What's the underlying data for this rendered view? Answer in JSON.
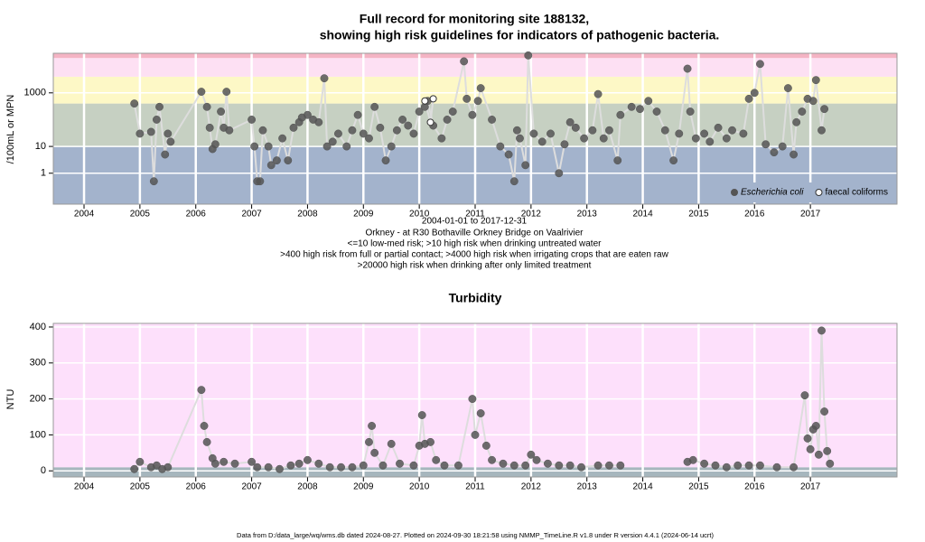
{
  "chart_data": [
    {
      "type": "line",
      "title": "Full record for monitoring site 188132,",
      "subtitle": "showing high risk guidelines for indicators of pathogenic bacteria.",
      "notes": [
        "2004-01-01 to 2017-12-31",
        "Orkney - at R30 Bothaville Orkney Bridge on Vaalrivier",
        "<=10 low-med risk; >10 high risk when drinking untreated water",
        ">400 high risk from full or partial contact; >4000 high risk when irrigating crops that are eaten raw",
        ">20000 high risk when drinking after only limited treatment"
      ],
      "y_label": "/100mL or MPN",
      "log_y": true,
      "grid": true,
      "legend": "bottom-right",
      "xlim": [
        2003.45,
        2018.55
      ],
      "xticks": [
        2004,
        2005,
        2006,
        2007,
        2008,
        2009,
        2010,
        2011,
        2012,
        2013,
        2014,
        2015,
        2016,
        2017
      ],
      "ylim": [
        0.07,
        30000
      ],
      "yticks": [
        1,
        10,
        1000
      ],
      "thresholds": [
        10,
        400,
        4000,
        20000
      ],
      "band_colors": [
        "#a3b3cc",
        "#c6d0c2",
        "#fdf8c6",
        "#fde0f3",
        "#f4b4c4"
      ],
      "series": [
        {
          "name": "Escherichia coli",
          "color": "#555555",
          "marker": "filled",
          "x": [
            2004.9,
            2005.0,
            2005.2,
            2005.25,
            2005.3,
            2005.35,
            2005.45,
            2005.5,
            2005.55,
            2006.1,
            2006.2,
            2006.25,
            2006.3,
            2006.35,
            2006.45,
            2006.5,
            2006.55,
            2006.6,
            2007.0,
            2007.05,
            2007.1,
            2007.15,
            2007.2,
            2007.3,
            2007.35,
            2007.45,
            2007.55,
            2007.65,
            2007.75,
            2007.85,
            2007.9,
            2008.0,
            2008.1,
            2008.2,
            2008.3,
            2008.35,
            2008.45,
            2008.55,
            2008.7,
            2008.8,
            2008.9,
            2009.0,
            2009.1,
            2009.2,
            2009.3,
            2009.4,
            2009.5,
            2009.6,
            2009.7,
            2009.8,
            2009.9,
            2010.0,
            2010.1,
            2010.15,
            2010.25,
            2010.4,
            2010.5,
            2010.6,
            2010.8,
            2010.85,
            2010.95,
            2011.05,
            2011.1,
            2011.3,
            2011.45,
            2011.6,
            2011.7,
            2011.75,
            2011.8,
            2011.9,
            2011.95,
            2012.05,
            2012.2,
            2012.35,
            2012.5,
            2012.6,
            2012.7,
            2012.8,
            2012.95,
            2013.1,
            2013.2,
            2013.3,
            2013.4,
            2013.55,
            2013.6,
            2013.8,
            2013.95,
            2014.1,
            2014.25,
            2014.4,
            2014.55,
            2014.65,
            2014.8,
            2014.85,
            2014.95,
            2015.1,
            2015.2,
            2015.35,
            2015.5,
            2015.6,
            2015.8,
            2015.9,
            2016.0,
            2016.1,
            2016.2,
            2016.35,
            2016.5,
            2016.6,
            2016.7,
            2016.75,
            2016.85,
            2016.95,
            2017.05,
            2017.1,
            2017.2,
            2017.25
          ],
          "values": [
            400,
            30,
            35,
            0.5,
            100,
            300,
            5,
            30,
            15,
            1100,
            300,
            50,
            8,
            12,
            200,
            50,
            1100,
            40,
            100,
            10,
            0.5,
            0.5,
            40,
            10,
            2,
            3,
            20,
            3,
            50,
            80,
            120,
            150,
            100,
            80,
            3500,
            10,
            15,
            30,
            10,
            40,
            150,
            30,
            20,
            300,
            50,
            3,
            10,
            40,
            100,
            60,
            30,
            200,
            300,
            500,
            60,
            20,
            100,
            200,
            15000,
            600,
            150,
            500,
            1500,
            100,
            10,
            5,
            0.5,
            40,
            20,
            2,
            25000,
            30,
            15,
            30,
            1,
            12,
            80,
            50,
            20,
            40,
            900,
            20,
            40,
            3,
            150,
            300,
            250,
            500,
            200,
            40,
            3,
            30,
            8000,
            200,
            20,
            30,
            15,
            50,
            20,
            40,
            30,
            600,
            1000,
            12000,
            12,
            6,
            10,
            1500,
            5,
            80,
            200,
            600,
            500,
            3000,
            40,
            250
          ]
        },
        {
          "name": "faecal coliforms",
          "color": "#333333",
          "marker": "open",
          "x": [
            2010.1,
            2010.2,
            2010.25
          ],
          "values": [
            500,
            80,
            600
          ]
        }
      ]
    },
    {
      "type": "line",
      "title": "Turbidity",
      "y_label": "NTU",
      "log_y": false,
      "grid": true,
      "xlim": [
        2003.45,
        2018.55
      ],
      "xticks": [
        2004,
        2005,
        2006,
        2007,
        2008,
        2009,
        2010,
        2011,
        2012,
        2013,
        2014,
        2015,
        2016,
        2017
      ],
      "ylim": [
        -17,
        410
      ],
      "yticks": [
        0,
        100,
        200,
        300,
        400
      ],
      "thresholds": [
        10
      ],
      "band_colors": [
        "#a6b6bd",
        "#fde0fb"
      ],
      "series": [
        {
          "color": "#555555",
          "marker": "filled",
          "x": [
            2004.9,
            2005.0,
            2005.2,
            2005.3,
            2005.4,
            2005.5,
            2006.1,
            2006.15,
            2006.2,
            2006.3,
            2006.35,
            2006.5,
            2006.7,
            2007.0,
            2007.1,
            2007.3,
            2007.5,
            2007.7,
            2007.85,
            2008.0,
            2008.2,
            2008.4,
            2008.6,
            2008.8,
            2009.0,
            2009.1,
            2009.15,
            2009.2,
            2009.35,
            2009.5,
            2009.65,
            2009.9,
            2010.0,
            2010.05,
            2010.1,
            2010.2,
            2010.3,
            2010.45,
            2010.7,
            2010.95,
            2011.0,
            2011.1,
            2011.2,
            2011.3,
            2011.5,
            2011.7,
            2011.9,
            2012.0,
            2012.1,
            2012.3,
            2012.5,
            2012.7,
            2012.9,
            2013.2,
            2013.4,
            2013.6,
            2014.2,
            2014.8,
            2014.9,
            2015.1,
            2015.3,
            2015.5,
            2015.7,
            2015.9,
            2016.1,
            2016.4,
            2016.7,
            2016.9,
            2016.95,
            2017.0,
            2017.05,
            2017.1,
            2017.15,
            2017.2,
            2017.25,
            2017.3,
            2017.35
          ],
          "values": [
            5,
            25,
            10,
            15,
            5,
            10,
            225,
            125,
            80,
            35,
            20,
            25,
            20,
            25,
            10,
            10,
            5,
            15,
            20,
            30,
            20,
            10,
            10,
            10,
            15,
            80,
            125,
            50,
            15,
            75,
            20,
            15,
            70,
            155,
            75,
            80,
            30,
            15,
            15,
            200,
            100,
            160,
            70,
            30,
            20,
            15,
            15,
            45,
            30,
            20,
            15,
            15,
            10,
            15,
            15,
            15,
            null,
            25,
            30,
            20,
            15,
            10,
            15,
            15,
            15,
            10,
            10,
            210,
            90,
            60,
            115,
            125,
            45,
            390,
            165,
            55,
            20
          ]
        }
      ]
    }
  ],
  "footer": "Data from D:/data_large/wq/wms.db dated 2024-08-27. Plotted on 2024-09-30 18:21:58 using NMMP_TimeLine.R v1.8 under R version 4.4.1 (2024-06-14 ucrt)"
}
